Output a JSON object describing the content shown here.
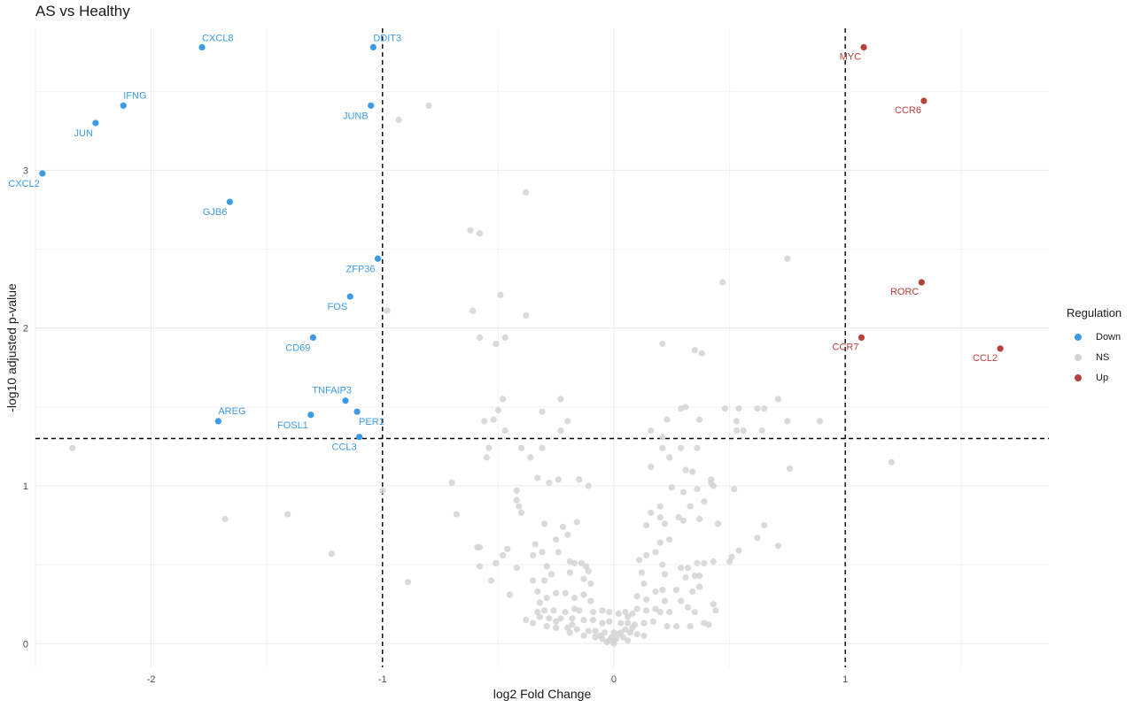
{
  "chart_data": {
    "type": "scatter",
    "title": "AS vs Healthy",
    "xlabel": "log2 Fold Change",
    "ylabel": "-log10 adjusted p-value",
    "xlim": [
      -2.5,
      1.88
    ],
    "ylim": [
      -0.15,
      3.9
    ],
    "x_ticks": [
      -2,
      -1,
      0,
      1
    ],
    "y_ticks": [
      0,
      1,
      2,
      3
    ],
    "x_tick_labels": [
      "-2",
      "-1",
      "0",
      "1"
    ],
    "y_tick_labels": [
      "0",
      "1",
      "2",
      "3"
    ],
    "thresholds": {
      "x": [
        -1,
        1
      ],
      "y": 1.3
    },
    "grid": true,
    "legend": {
      "title": "Regulation",
      "position": "right",
      "entries": [
        "Down",
        "NS",
        "Up"
      ]
    },
    "colors": {
      "Down": "#3c9be6",
      "NS": "#d3d3d3",
      "Up": "#b8403a"
    },
    "labeled_points": [
      {
        "label": "CXCL8",
        "x": -1.78,
        "y": 3.78,
        "group": "Down"
      },
      {
        "label": "DDIT3",
        "x": -1.04,
        "y": 3.78,
        "group": "Down"
      },
      {
        "label": "IFNG",
        "x": -2.12,
        "y": 3.41,
        "group": "Down"
      },
      {
        "label": "JUN",
        "x": -2.24,
        "y": 3.3,
        "group": "Down"
      },
      {
        "label": "JUNB",
        "x": -1.05,
        "y": 3.41,
        "group": "Down"
      },
      {
        "label": "CXCL2",
        "x": -2.47,
        "y": 2.98,
        "group": "Down"
      },
      {
        "label": "GJB6",
        "x": -1.66,
        "y": 2.8,
        "group": "Down"
      },
      {
        "label": "ZFP36",
        "x": -1.02,
        "y": 2.44,
        "group": "Down"
      },
      {
        "label": "FOS",
        "x": -1.14,
        "y": 2.2,
        "group": "Down"
      },
      {
        "label": "CD69",
        "x": -1.3,
        "y": 1.94,
        "group": "Down"
      },
      {
        "label": "TNFAIP3",
        "x": -1.16,
        "y": 1.54,
        "group": "Down"
      },
      {
        "label": "AREG",
        "x": -1.71,
        "y": 1.41,
        "group": "Down"
      },
      {
        "label": "FOSL1",
        "x": -1.31,
        "y": 1.45,
        "group": "Down"
      },
      {
        "label": "PER1",
        "x": -1.11,
        "y": 1.47,
        "group": "Down"
      },
      {
        "label": "CCL3",
        "x": -1.1,
        "y": 1.31,
        "group": "Down"
      },
      {
        "label": "MYC",
        "x": 1.08,
        "y": 3.78,
        "group": "Up"
      },
      {
        "label": "CCR6",
        "x": 1.34,
        "y": 3.44,
        "group": "Up"
      },
      {
        "label": "RORC",
        "x": 1.33,
        "y": 2.29,
        "group": "Up"
      },
      {
        "label": "CCR7",
        "x": 1.07,
        "y": 1.94,
        "group": "Up"
      },
      {
        "label": "CCL2",
        "x": 1.67,
        "y": 1.87,
        "group": "Up"
      }
    ],
    "ns_points": [
      [
        -2.34,
        1.24
      ],
      [
        -1.68,
        0.79
      ],
      [
        -1.41,
        0.82
      ],
      [
        -1.22,
        0.57
      ],
      [
        -0.89,
        0.39
      ],
      [
        -0.8,
        3.41
      ],
      [
        -0.93,
        3.32
      ],
      [
        -0.38,
        2.86
      ],
      [
        -0.62,
        2.62
      ],
      [
        -0.58,
        2.6
      ],
      [
        0.75,
        2.44
      ],
      [
        0.47,
        2.29
      ],
      [
        -0.98,
        2.11
      ],
      [
        -0.61,
        2.11
      ],
      [
        -0.49,
        2.21
      ],
      [
        -0.38,
        2.08
      ],
      [
        -0.58,
        1.94
      ],
      [
        -0.47,
        1.94
      ],
      [
        -0.51,
        1.9
      ],
      [
        0.21,
        1.9
      ],
      [
        0.35,
        1.86
      ],
      [
        0.38,
        1.84
      ],
      [
        -0.48,
        1.55
      ],
      [
        -0.23,
        1.55
      ],
      [
        0.71,
        1.55
      ],
      [
        -0.5,
        1.48
      ],
      [
        -0.31,
        1.47
      ],
      [
        0.29,
        1.49
      ],
      [
        0.31,
        1.5
      ],
      [
        0.48,
        1.49
      ],
      [
        0.54,
        1.49
      ],
      [
        0.62,
        1.49
      ],
      [
        0.65,
        1.49
      ],
      [
        -0.56,
        1.41
      ],
      [
        -0.52,
        1.42
      ],
      [
        -0.2,
        1.41
      ],
      [
        0.23,
        1.42
      ],
      [
        0.37,
        1.42
      ],
      [
        0.53,
        1.41
      ],
      [
        0.75,
        1.41
      ],
      [
        0.89,
        1.41
      ],
      [
        -0.47,
        1.35
      ],
      [
        -0.23,
        1.35
      ],
      [
        0.16,
        1.35
      ],
      [
        0.21,
        1.31
      ],
      [
        0.53,
        1.35
      ],
      [
        0.56,
        1.35
      ],
      [
        0.64,
        1.35
      ],
      [
        -0.54,
        1.24
      ],
      [
        -0.4,
        1.24
      ],
      [
        -0.31,
        1.24
      ],
      [
        -0.55,
        1.18
      ],
      [
        -0.36,
        1.18
      ],
      [
        0.21,
        1.24
      ],
      [
        0.29,
        1.24
      ],
      [
        0.36,
        1.24
      ],
      [
        0.24,
        1.18
      ],
      [
        0.31,
        1.1
      ],
      [
        0.34,
        1.09
      ],
      [
        0.16,
        1.12
      ],
      [
        -0.33,
        1.05
      ],
      [
        -0.24,
        1.04
      ],
      [
        -0.15,
        1.04
      ],
      [
        -0.28,
        1.02
      ],
      [
        -0.11,
        1.0
      ],
      [
        -0.7,
        1.02
      ],
      [
        -0.42,
        0.97
      ],
      [
        -1.0,
        0.97
      ],
      [
        0.52,
        0.98
      ],
      [
        0.42,
        1.04
      ],
      [
        0.43,
        1.0
      ],
      [
        0.25,
        0.99
      ],
      [
        0.3,
        0.96
      ],
      [
        0.39,
        0.9
      ],
      [
        -0.42,
        0.91
      ],
      [
        -0.41,
        0.87
      ],
      [
        -0.4,
        0.83
      ],
      [
        0.33,
        0.87
      ],
      [
        0.2,
        0.87
      ],
      [
        0.16,
        0.83
      ],
      [
        0.2,
        0.8
      ],
      [
        0.28,
        0.8
      ],
      [
        -0.68,
        0.82
      ],
      [
        -0.3,
        0.76
      ],
      [
        -0.22,
        0.74
      ],
      [
        -0.16,
        0.77
      ],
      [
        -0.2,
        0.69
      ],
      [
        0.22,
        0.76
      ],
      [
        0.3,
        0.78
      ],
      [
        0.37,
        0.79
      ],
      [
        0.14,
        0.75
      ],
      [
        0.45,
        0.76
      ],
      [
        0.65,
        0.75
      ],
      [
        0.62,
        0.67
      ],
      [
        0.54,
        0.59
      ],
      [
        0.71,
        0.62
      ],
      [
        -0.59,
        0.61
      ],
      [
        -0.58,
        0.61
      ],
      [
        -0.34,
        0.63
      ],
      [
        -0.25,
        0.66
      ],
      [
        -0.46,
        0.6
      ],
      [
        -0.31,
        0.58
      ],
      [
        -0.35,
        0.56
      ],
      [
        -0.48,
        0.56
      ],
      [
        -0.51,
        0.51
      ],
      [
        -0.58,
        0.49
      ],
      [
        -0.42,
        0.48
      ],
      [
        -0.19,
        0.52
      ],
      [
        -0.24,
        0.58
      ],
      [
        0.11,
        0.53
      ],
      [
        0.14,
        0.56
      ],
      [
        0.2,
        0.64
      ],
      [
        0.24,
        0.66
      ],
      [
        0.18,
        0.58
      ],
      [
        0.12,
        0.45
      ],
      [
        0.21,
        0.5
      ],
      [
        0.29,
        0.48
      ],
      [
        0.32,
        0.48
      ],
      [
        0.36,
        0.51
      ],
      [
        0.39,
        0.51
      ],
      [
        0.43,
        0.52
      ],
      [
        0.5,
        0.52
      ],
      [
        0.51,
        0.55
      ],
      [
        0.35,
        0.43
      ],
      [
        0.22,
        0.44
      ],
      [
        -0.17,
        0.51
      ],
      [
        -0.14,
        0.51
      ],
      [
        -0.12,
        0.49
      ],
      [
        -0.29,
        0.49
      ],
      [
        -0.27,
        0.44
      ],
      [
        -0.35,
        0.4
      ],
      [
        -0.19,
        0.45
      ],
      [
        -0.11,
        0.46
      ],
      [
        -0.13,
        0.41
      ],
      [
        -0.1,
        0.38
      ],
      [
        -0.53,
        0.4
      ],
      [
        -0.45,
        0.31
      ],
      [
        -0.3,
        0.4
      ],
      [
        -0.33,
        0.33
      ],
      [
        -0.29,
        0.29
      ],
      [
        -0.25,
        0.32
      ],
      [
        -0.21,
        0.32
      ],
      [
        -0.17,
        0.29
      ],
      [
        -0.13,
        0.31
      ],
      [
        -0.1,
        0.27
      ],
      [
        0.1,
        0.3
      ],
      [
        0.13,
        0.38
      ],
      [
        0.21,
        0.34
      ],
      [
        0.27,
        0.34
      ],
      [
        0.31,
        0.42
      ],
      [
        0.37,
        0.43
      ],
      [
        0.37,
        0.36
      ],
      [
        0.34,
        0.33
      ],
      [
        0.29,
        0.27
      ],
      [
        0.32,
        0.23
      ],
      [
        0.43,
        0.25
      ],
      [
        0.44,
        0.21
      ],
      [
        0.35,
        0.2
      ],
      [
        0.24,
        0.2
      ],
      [
        0.18,
        0.22
      ],
      [
        0.2,
        0.2
      ],
      [
        0.14,
        0.21
      ],
      [
        0.1,
        0.22
      ],
      [
        0.08,
        0.19
      ],
      [
        0.06,
        0.17
      ],
      [
        0.05,
        0.2
      ],
      [
        0.02,
        0.19
      ],
      [
        -0.02,
        0.2
      ],
      [
        -0.05,
        0.21
      ],
      [
        -0.09,
        0.2
      ],
      [
        -0.15,
        0.21
      ],
      [
        -0.17,
        0.22
      ],
      [
        -0.21,
        0.2
      ],
      [
        -0.26,
        0.21
      ],
      [
        -0.3,
        0.21
      ],
      [
        -0.33,
        0.2
      ],
      [
        -0.28,
        0.16
      ],
      [
        -0.23,
        0.16
      ],
      [
        -0.18,
        0.16
      ],
      [
        -0.13,
        0.15
      ],
      [
        -0.09,
        0.15
      ],
      [
        -0.05,
        0.13
      ],
      [
        -0.02,
        0.14
      ],
      [
        0.03,
        0.13
      ],
      [
        0.06,
        0.13
      ],
      [
        0.09,
        0.12
      ],
      [
        0.13,
        0.13
      ],
      [
        0.17,
        0.14
      ],
      [
        0.23,
        0.11
      ],
      [
        0.27,
        0.11
      ],
      [
        0.33,
        0.11
      ],
      [
        0.39,
        0.13
      ],
      [
        0.41,
        0.12
      ],
      [
        -0.35,
        0.13
      ],
      [
        -0.29,
        0.11
      ],
      [
        -0.25,
        0.1
      ],
      [
        -0.2,
        0.1
      ],
      [
        -0.16,
        0.09
      ],
      [
        -0.11,
        0.08
      ],
      [
        -0.08,
        0.08
      ],
      [
        -0.04,
        0.07
      ],
      [
        0.0,
        0.07
      ],
      [
        0.03,
        0.07
      ],
      [
        0.07,
        0.07
      ],
      [
        0.1,
        0.06
      ],
      [
        0.13,
        0.05
      ],
      [
        -0.19,
        0.07
      ],
      [
        -0.13,
        0.05
      ],
      [
        -0.08,
        0.04
      ],
      [
        -0.05,
        0.03
      ],
      [
        -0.02,
        0.02
      ],
      [
        0.01,
        0.03
      ],
      [
        0.04,
        0.04
      ],
      [
        0.06,
        0.02
      ],
      [
        0.02,
        0.06
      ],
      [
        -0.01,
        0.04
      ],
      [
        -0.03,
        0.01
      ],
      [
        0.0,
        0.02
      ],
      [
        0.0,
        0.0
      ],
      [
        -0.06,
        0.05
      ],
      [
        0.05,
        0.09
      ],
      [
        0.08,
        0.1
      ],
      [
        -0.18,
        0.12
      ],
      [
        -0.25,
        0.14
      ],
      [
        -0.32,
        0.17
      ],
      [
        0.22,
        0.27
      ],
      [
        0.18,
        0.33
      ],
      [
        0.14,
        0.28
      ],
      [
        -0.32,
        0.26
      ],
      [
        -0.38,
        0.15
      ],
      [
        1.2,
        1.15
      ],
      [
        0.76,
        1.11
      ],
      [
        0.42,
        1.02
      ],
      [
        0.36,
        0.98
      ]
    ]
  }
}
